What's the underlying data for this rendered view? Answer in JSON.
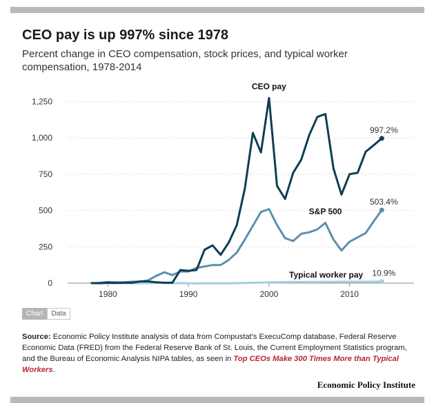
{
  "header": {
    "title": "CEO pay is up 997% since 1978",
    "subtitle": "Percent change in CEO compensation, stock prices, and typical worker compensation, 1978-2014"
  },
  "tabs": [
    {
      "label": "Chart",
      "active": true
    },
    {
      "label": "Data",
      "active": false
    }
  ],
  "source": {
    "prefix": "Source:",
    "text": "Economic Policy Institute analysis of data from Compustat's ExecuComp database, Federal Reserve Economic Data (FRED) from the Federal Reserve Bank of St. Louis, the Current Employment Statistics program, and the Bureau of Economic Analysis NIPA tables, as seen in",
    "link_text": "Top CEOs Make 300 Times More than Typical Workers",
    "suffix": "."
  },
  "footer": {
    "org": "Economic Policy Institute"
  },
  "colors": {
    "ceo": "#0e3d52",
    "sp500": "#5b8fae",
    "worker": "#a7cde0",
    "grid": "#d4d4d4",
    "axis": "#8a8a8a",
    "rule": "#b9b9b9",
    "tab_active": "#b5b5b5",
    "link": "#b5272e"
  },
  "chart_data": {
    "type": "line",
    "x": [
      1978,
      1979,
      1980,
      1981,
      1982,
      1983,
      1984,
      1985,
      1986,
      1987,
      1988,
      1989,
      1990,
      1991,
      1992,
      1993,
      1994,
      1995,
      1996,
      1997,
      1998,
      1999,
      2000,
      2001,
      2002,
      2003,
      2004,
      2005,
      2006,
      2007,
      2008,
      2009,
      2010,
      2011,
      2012,
      2013,
      2014
    ],
    "xticks": [
      1980,
      1990,
      2000,
      2010
    ],
    "xtick_labels": [
      "1980",
      "1990",
      "2000",
      "2010"
    ],
    "yticks": [
      0,
      250,
      500,
      750,
      1000,
      1250
    ],
    "ytick_labels": [
      "0",
      "250",
      "500",
      "750",
      "1,000",
      "1,250"
    ],
    "xlim": [
      1975,
      2018
    ],
    "ylim": [
      0,
      1300
    ],
    "grid": "horizontal dotted",
    "series": [
      {
        "name": "CEO pay",
        "color": "#0e3d52",
        "end_label": "997.2%",
        "values": [
          0,
          0,
          3,
          2,
          3,
          3,
          12,
          12,
          6,
          3,
          3,
          90,
          85,
          90,
          230,
          260,
          195,
          280,
          400,
          650,
          1035,
          900,
          1275,
          670,
          580,
          760,
          850,
          1020,
          1145,
          1165,
          790,
          610,
          750,
          760,
          905,
          950,
          997.2
        ]
      },
      {
        "name": "S&P 500",
        "color": "#5b8fae",
        "end_label": "503.4%",
        "values": [
          0,
          2,
          8,
          5,
          5,
          10,
          10,
          20,
          50,
          75,
          55,
          80,
          80,
          105,
          115,
          125,
          125,
          160,
          210,
          300,
          395,
          490,
          510,
          400,
          310,
          290,
          340,
          350,
          370,
          415,
          300,
          225,
          285,
          315,
          345,
          425,
          503.4
        ]
      },
      {
        "name": "Typical worker pay",
        "color": "#a7cde0",
        "end_label": "10.9%",
        "values": [
          0,
          -1,
          -2,
          -2,
          -1,
          -1,
          -1,
          0,
          1,
          0,
          0,
          0,
          -1,
          -2,
          -1,
          -1,
          -1,
          -1,
          0,
          1,
          3,
          4,
          5,
          6,
          7,
          8,
          8,
          8,
          8,
          9,
          9,
          10,
          10,
          10,
          10,
          10.5,
          10.9
        ]
      }
    ]
  }
}
